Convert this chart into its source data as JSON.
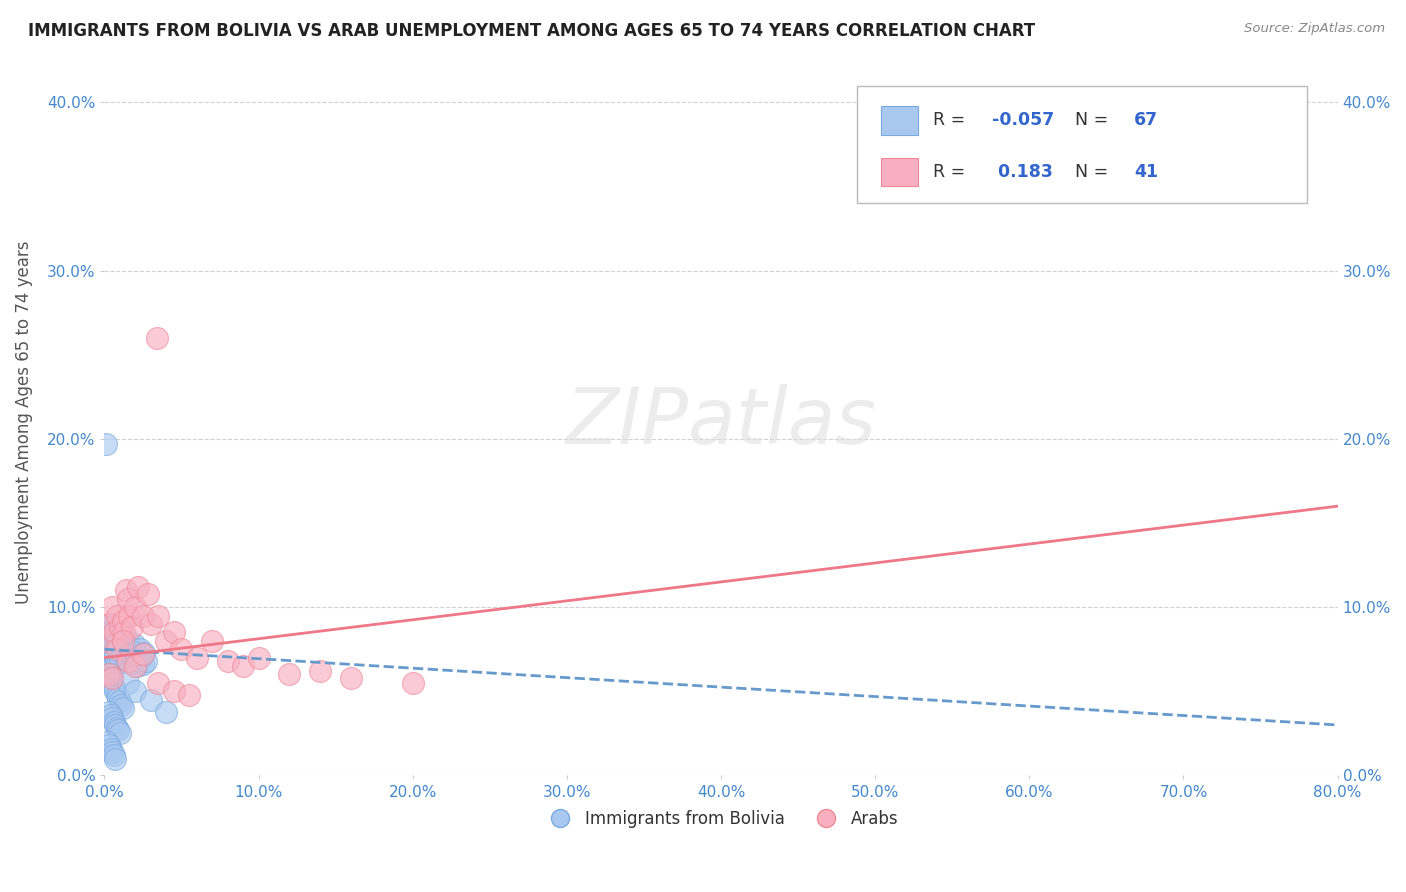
{
  "title": "IMMIGRANTS FROM BOLIVIA VS ARAB UNEMPLOYMENT AMONG AGES 65 TO 74 YEARS CORRELATION CHART",
  "source": "Source: ZipAtlas.com",
  "ylabel": "Unemployment Among Ages 65 to 74 years",
  "xlim": [
    0.0,
    0.8
  ],
  "ylim": [
    0.0,
    0.42
  ],
  "xticks": [
    0.0,
    0.1,
    0.2,
    0.3,
    0.4,
    0.5,
    0.6,
    0.7,
    0.8
  ],
  "xticklabels": [
    "0.0%",
    "10.0%",
    "20.0%",
    "30.0%",
    "40.0%",
    "50.0%",
    "60.0%",
    "70.0%",
    "80.0%"
  ],
  "yticks": [
    0.0,
    0.1,
    0.2,
    0.3,
    0.4
  ],
  "yticklabels": [
    "0.0%",
    "10.0%",
    "20.0%",
    "30.0%",
    "40.0%"
  ],
  "grid_color": "#cccccc",
  "background_color": "#ffffff",
  "series1_color": "#a8c8f0",
  "series1_edge": "#7aaadd",
  "series1_label": "Immigrants from Bolivia",
  "series1_R": "-0.057",
  "series1_N": "67",
  "series2_color": "#f8b0c0",
  "series2_edge": "#ee8899",
  "series2_label": "Arabs",
  "series2_R": "0.183",
  "series2_N": "41",
  "trend1_color": "#6699cc",
  "trend2_color": "#ee7788",
  "title_color": "#222222",
  "axis_label_color": "#555555",
  "tick_color": "#4488cc",
  "series1_x": [
    0.001,
    0.002,
    0.002,
    0.003,
    0.003,
    0.003,
    0.004,
    0.004,
    0.005,
    0.005,
    0.005,
    0.006,
    0.006,
    0.006,
    0.007,
    0.007,
    0.008,
    0.008,
    0.009,
    0.01,
    0.01,
    0.011,
    0.012,
    0.013,
    0.014,
    0.015,
    0.016,
    0.017,
    0.018,
    0.019,
    0.02,
    0.021,
    0.022,
    0.023,
    0.024,
    0.025,
    0.026,
    0.027,
    0.003,
    0.004,
    0.005,
    0.006,
    0.007,
    0.008,
    0.009,
    0.01,
    0.011,
    0.012,
    0.003,
    0.004,
    0.005,
    0.006,
    0.007,
    0.008,
    0.009,
    0.01,
    0.002,
    0.003,
    0.004,
    0.005,
    0.006,
    0.007,
    0.001,
    0.015,
    0.02,
    0.03,
    0.04
  ],
  "series1_y": [
    0.075,
    0.08,
    0.07,
    0.085,
    0.072,
    0.068,
    0.09,
    0.078,
    0.082,
    0.073,
    0.069,
    0.088,
    0.074,
    0.066,
    0.083,
    0.071,
    0.079,
    0.067,
    0.081,
    0.076,
    0.07,
    0.084,
    0.073,
    0.077,
    0.069,
    0.08,
    0.072,
    0.074,
    0.071,
    0.078,
    0.073,
    0.065,
    0.068,
    0.075,
    0.07,
    0.066,
    0.073,
    0.068,
    0.06,
    0.058,
    0.055,
    0.052,
    0.05,
    0.048,
    0.046,
    0.044,
    0.042,
    0.04,
    0.038,
    0.036,
    0.034,
    0.032,
    0.03,
    0.028,
    0.027,
    0.025,
    0.02,
    0.018,
    0.016,
    0.014,
    0.012,
    0.01,
    0.197,
    0.055,
    0.05,
    0.045,
    0.038
  ],
  "series2_x": [
    0.001,
    0.003,
    0.005,
    0.006,
    0.008,
    0.01,
    0.012,
    0.013,
    0.014,
    0.015,
    0.016,
    0.018,
    0.02,
    0.022,
    0.025,
    0.028,
    0.03,
    0.035,
    0.04,
    0.045,
    0.05,
    0.06,
    0.07,
    0.08,
    0.09,
    0.1,
    0.12,
    0.14,
    0.16,
    0.2,
    0.003,
    0.005,
    0.008,
    0.012,
    0.015,
    0.02,
    0.025,
    0.035,
    0.045,
    0.055,
    0.034
  ],
  "series2_y": [
    0.08,
    0.09,
    0.1,
    0.085,
    0.095,
    0.088,
    0.092,
    0.085,
    0.11,
    0.105,
    0.095,
    0.088,
    0.1,
    0.112,
    0.095,
    0.108,
    0.09,
    0.095,
    0.08,
    0.085,
    0.075,
    0.07,
    0.08,
    0.068,
    0.065,
    0.07,
    0.06,
    0.062,
    0.058,
    0.055,
    0.06,
    0.058,
    0.075,
    0.08,
    0.068,
    0.065,
    0.072,
    0.055,
    0.05,
    0.048,
    0.26
  ],
  "trend1_x": [
    0.0,
    0.8
  ],
  "trend1_y": [
    0.075,
    0.03
  ],
  "trend2_x": [
    0.0,
    0.8
  ],
  "trend2_y": [
    0.07,
    0.16
  ]
}
